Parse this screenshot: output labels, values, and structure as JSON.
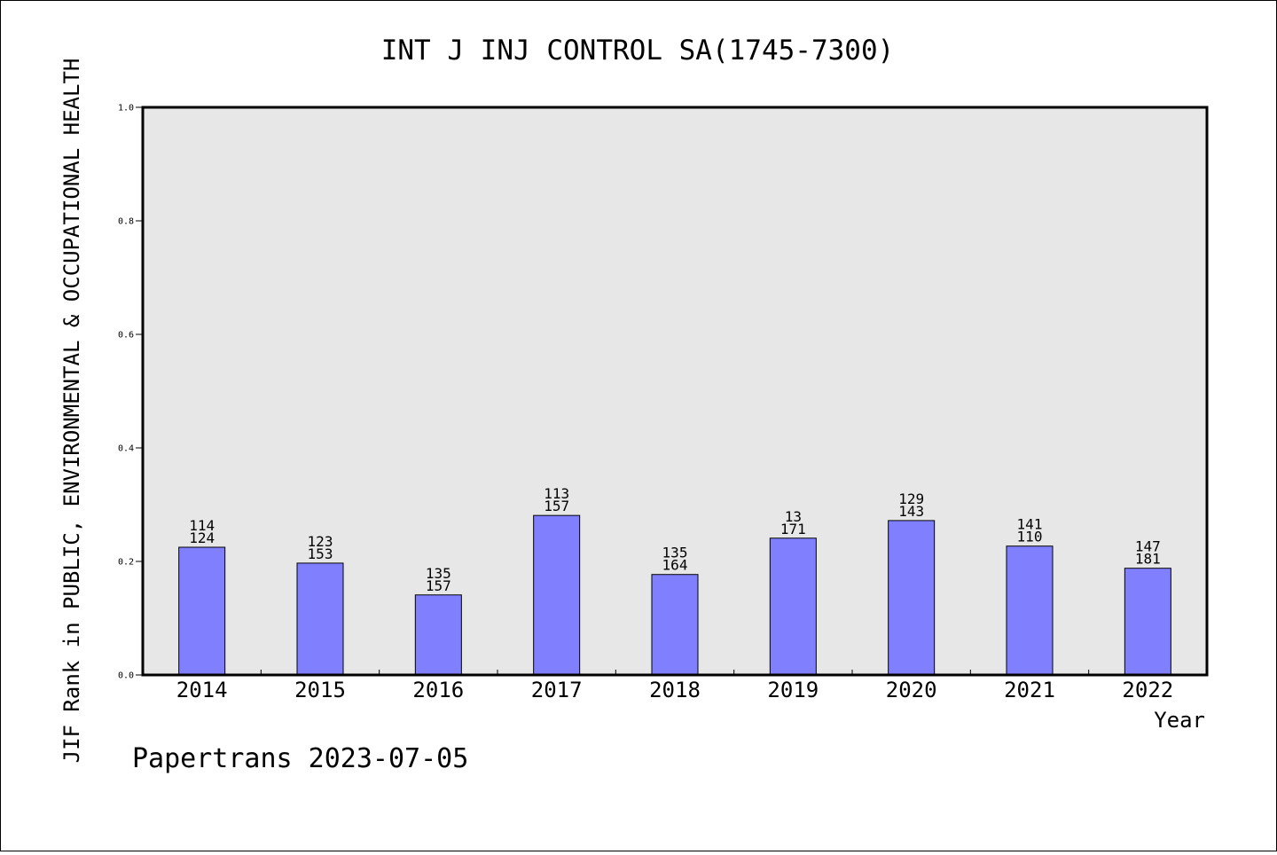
{
  "chart_data": {
    "type": "bar",
    "title": "INT J INJ CONTROL SA(1745-7300)",
    "xlabel": "Year",
    "ylabel": "JIF Rank in PUBLIC, ENVIRONMENTAL & OCCUPATIONAL HEALTH",
    "categories": [
      "2014",
      "2015",
      "2016",
      "2017",
      "2018",
      "2019",
      "2020",
      "2021",
      "2022"
    ],
    "values": [
      0.225,
      0.197,
      0.141,
      0.281,
      0.177,
      0.241,
      0.272,
      0.227,
      0.188
    ],
    "bar_labels": [
      [
        "114",
        "124"
      ],
      [
        "123",
        "153"
      ],
      [
        "135",
        "157"
      ],
      [
        "113",
        "157"
      ],
      [
        "135",
        "164"
      ],
      [
        "13",
        "171"
      ],
      [
        "129",
        "143"
      ],
      [
        "141",
        "110"
      ],
      [
        "147",
        "181"
      ]
    ],
    "ylim": [
      0.0,
      1.0
    ],
    "yticks": [
      "0.0",
      "0.2",
      "0.4",
      "0.6",
      "0.8",
      "1.0"
    ],
    "grid": false,
    "colors": {
      "bar_fill": "#8080ff",
      "plot_background": "#e7e7e7"
    }
  },
  "footer": "Papertrans 2023-07-05"
}
